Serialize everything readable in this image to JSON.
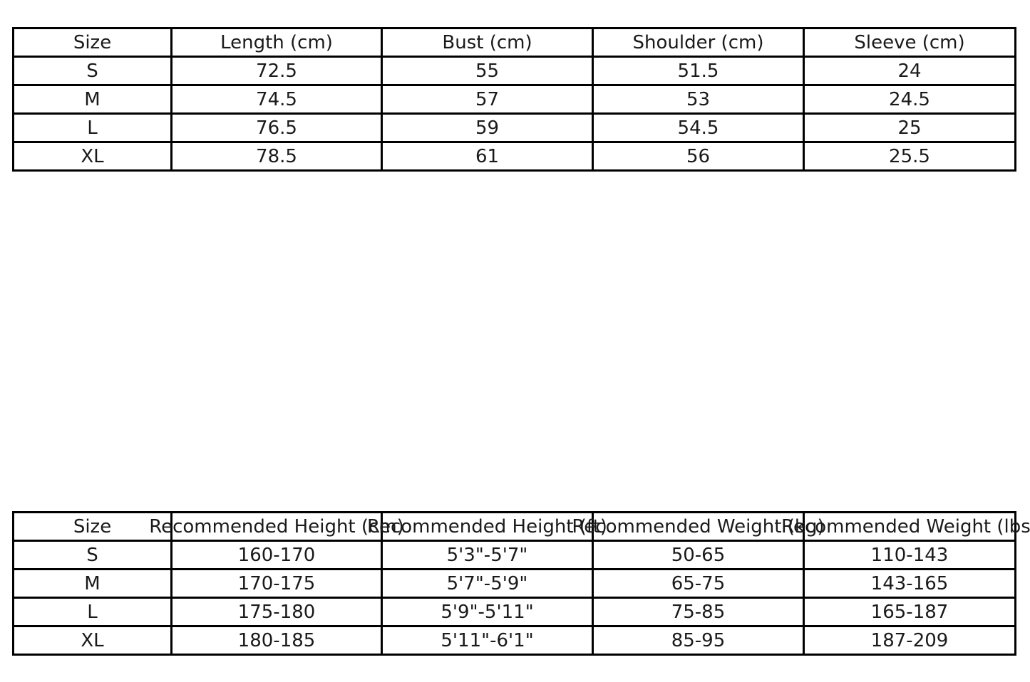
{
  "styles": {
    "background": "#ffffff",
    "text_color": "#1a1a1a",
    "border_color": "#000000"
  },
  "chart_data": [
    {
      "type": "table",
      "name": "garment-measurements",
      "legend_position": "none",
      "grid": true,
      "columns": [
        "Size",
        "Length (cm)",
        "Bust (cm)",
        "Shoulder (cm)",
        "Sleeve (cm)"
      ],
      "rows": [
        [
          "S",
          "72.5",
          "55",
          "51.5",
          "24"
        ],
        [
          "M",
          "74.5",
          "57",
          "53",
          "24.5"
        ],
        [
          "L",
          "76.5",
          "59",
          "54.5",
          "25"
        ],
        [
          "XL",
          "78.5",
          "61",
          "56",
          "25.5"
        ]
      ]
    },
    {
      "type": "table",
      "name": "size-recommendations",
      "legend_position": "none",
      "grid": true,
      "columns": [
        "Size",
        "Recommended Height (cm)",
        "Recommended Height (ft)",
        "Recommended Weight (kg)",
        "Recommended Weight (lbs)"
      ],
      "rows": [
        [
          "S",
          "160-170",
          "5'3\"-5'7\"",
          "50-65",
          "110-143"
        ],
        [
          "M",
          "170-175",
          "5'7\"-5'9\"",
          "65-75",
          "143-165"
        ],
        [
          "L",
          "175-180",
          "5'9\"-5'11\"",
          "75-85",
          "165-187"
        ],
        [
          "XL",
          "180-185",
          "5'11\"-6'1\"",
          "85-95",
          "187-209"
        ]
      ]
    }
  ]
}
